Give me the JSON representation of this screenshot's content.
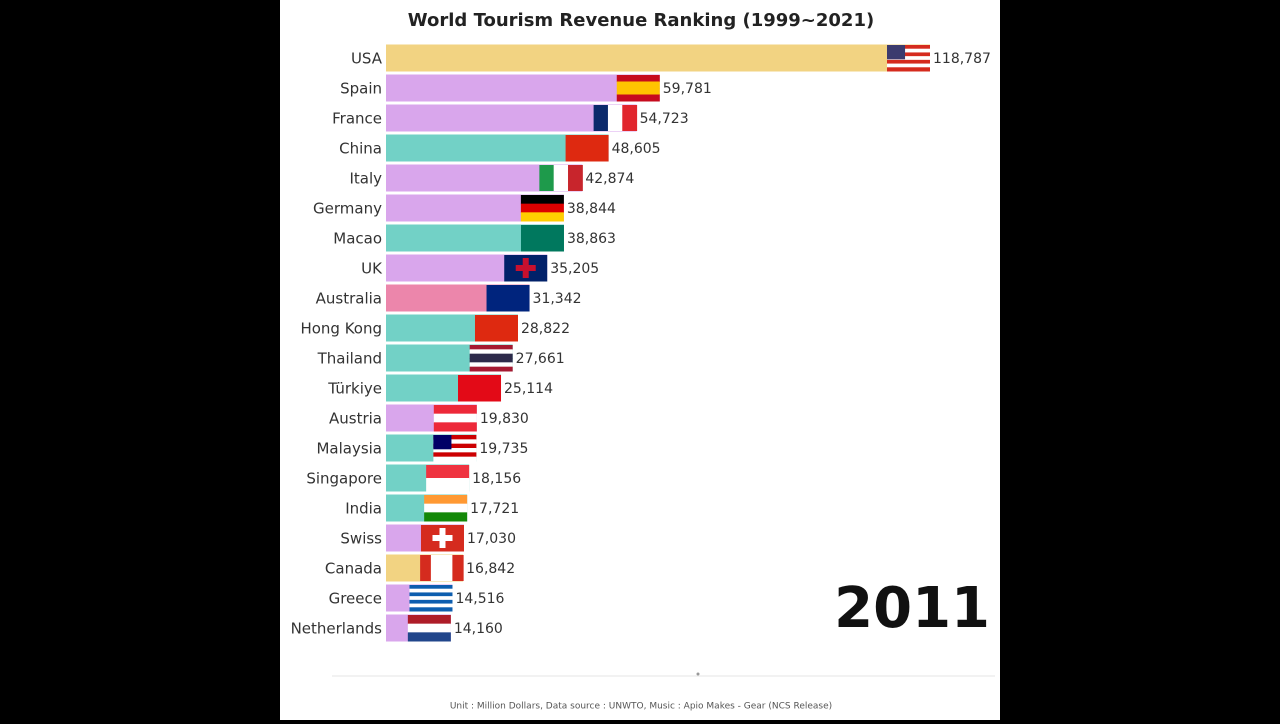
{
  "chart_data": {
    "type": "bar",
    "orientation": "horizontal",
    "title": "World Tourism Revenue Ranking (1999~2021)",
    "categories": [
      "USA",
      "Spain",
      "France",
      "China",
      "Italy",
      "Germany",
      "Macao",
      "UK",
      "Australia",
      "Hong Kong",
      "Thailand",
      "Türkiye",
      "Austria",
      "Malaysia",
      "Singapore",
      "India",
      "Swiss",
      "Canada",
      "Greece",
      "Netherlands"
    ],
    "values": [
      118787,
      59781,
      54723,
      48605,
      42874,
      38844,
      38863,
      35205,
      31342,
      28822,
      27661,
      25114,
      19830,
      19735,
      18156,
      17721,
      17030,
      16842,
      14516,
      14160
    ],
    "value_labels": [
      "118,787",
      "59,781",
      "54,723",
      "48,605",
      "42,874",
      "38,844",
      "38,863",
      "35,205",
      "31,342",
      "28,822",
      "27,661",
      "25,114",
      "19,830",
      "19,735",
      "18,156",
      "17,721",
      "17,030",
      "16,842",
      "14,516",
      "14,160"
    ],
    "colors": [
      "#f2d382",
      "#d9a6ec",
      "#d9a6ec",
      "#72d1c6",
      "#d9a6ec",
      "#d9a6ec",
      "#72d1c6",
      "#d9a6ec",
      "#ec86ab",
      "#72d1c6",
      "#72d1c6",
      "#72d1c6",
      "#d9a6ec",
      "#72d1c6",
      "#72d1c6",
      "#72d1c6",
      "#d9a6ec",
      "#f2d382",
      "#d9a6ec",
      "#d9a6ec"
    ],
    "xlim": [
      0,
      118787
    ],
    "year": "2011",
    "footnote": "Unit : Million Dollars, Data source : UNWTO, Music : Apio Makes - Gear (NCS Release)"
  }
}
